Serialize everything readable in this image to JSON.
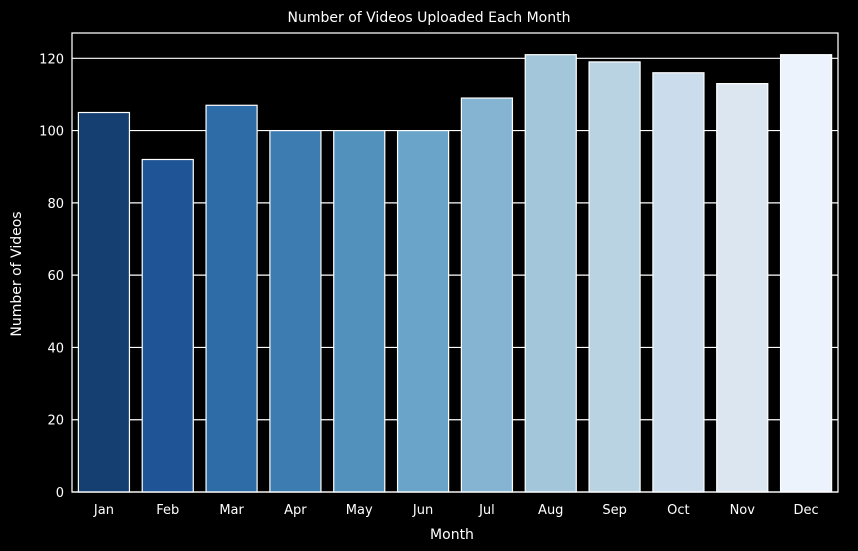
{
  "chart_data": {
    "type": "bar",
    "title": "Number of Videos Uploaded Each Month",
    "xlabel": "Month",
    "ylabel": "Number of Videos",
    "categories": [
      "Jan",
      "Feb",
      "Mar",
      "Apr",
      "May",
      "Jun",
      "Jul",
      "Aug",
      "Sep",
      "Oct",
      "Nov",
      "Dec"
    ],
    "values": [
      105,
      92,
      107,
      100,
      100,
      100,
      109,
      121,
      119,
      116,
      113,
      121
    ],
    "ylim": [
      0,
      127
    ],
    "yticks": [
      0,
      20,
      40,
      60,
      80,
      100,
      120
    ],
    "grid": true,
    "legend": "none",
    "colors": [
      "#163f71",
      "#1f5596",
      "#2d6ca6",
      "#3c7cb1",
      "#5391bd",
      "#6aa5c9",
      "#85b4d3",
      "#a3c6da",
      "#bad3e3",
      "#cbdcec",
      "#dce6f1",
      "#ecf3fc"
    ],
    "background": "#000000",
    "text_color": "#ffffff",
    "grid_color": "#ffffff"
  }
}
